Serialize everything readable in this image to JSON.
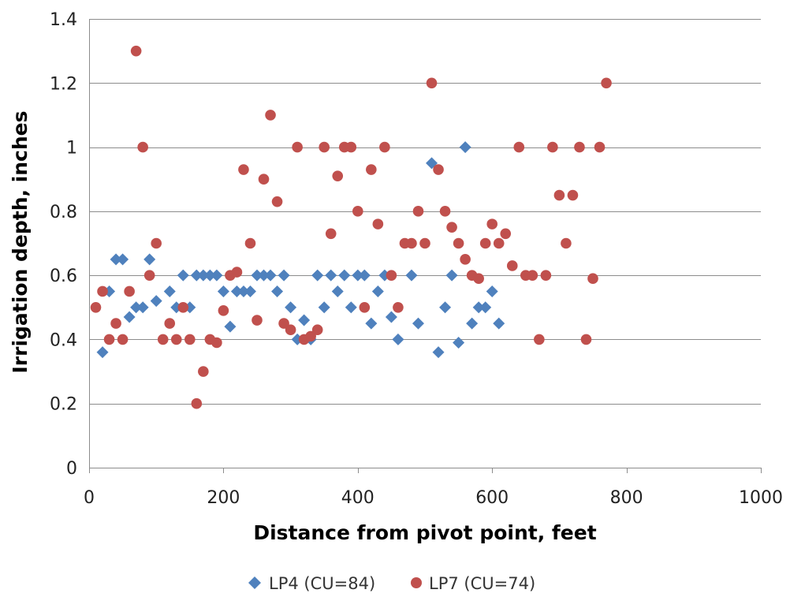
{
  "chart_data": {
    "type": "scatter",
    "title": "",
    "xlabel": "Distance from pivot point, feet",
    "ylabel": "Irrigation depth, inches",
    "xlim": [
      0,
      1000
    ],
    "ylim": [
      0,
      1.4
    ],
    "xticks": [
      0,
      200,
      400,
      600,
      800,
      1000
    ],
    "yticks": [
      0,
      0.2,
      0.4,
      0.6,
      0.8,
      1,
      1.2,
      1.4
    ],
    "xtick_labels": [
      "0",
      "200",
      "400",
      "600",
      "800",
      "1000"
    ],
    "ytick_labels": [
      "0",
      "0.2",
      "0.4",
      "0.6",
      "0.8",
      "1",
      "1.2",
      "1.4"
    ],
    "grid": "horizontal",
    "legend_position": "bottom",
    "series": [
      {
        "name": "LP4 (CU=84)",
        "marker": "diamond",
        "color": "#4f81bd",
        "points": [
          [
            20,
            0.36
          ],
          [
            30,
            0.55
          ],
          [
            40,
            0.65
          ],
          [
            50,
            0.65
          ],
          [
            60,
            0.47
          ],
          [
            70,
            0.5
          ],
          [
            80,
            0.5
          ],
          [
            90,
            0.65
          ],
          [
            100,
            0.52
          ],
          [
            120,
            0.55
          ],
          [
            130,
            0.5
          ],
          [
            140,
            0.6
          ],
          [
            150,
            0.5
          ],
          [
            160,
            0.6
          ],
          [
            170,
            0.6
          ],
          [
            180,
            0.6
          ],
          [
            190,
            0.6
          ],
          [
            200,
            0.55
          ],
          [
            210,
            0.44
          ],
          [
            220,
            0.55
          ],
          [
            230,
            0.55
          ],
          [
            240,
            0.55
          ],
          [
            250,
            0.6
          ],
          [
            260,
            0.6
          ],
          [
            270,
            0.6
          ],
          [
            280,
            0.55
          ],
          [
            290,
            0.6
          ],
          [
            300,
            0.5
          ],
          [
            310,
            0.4
          ],
          [
            320,
            0.46
          ],
          [
            330,
            0.4
          ],
          [
            340,
            0.6
          ],
          [
            350,
            0.5
          ],
          [
            360,
            0.6
          ],
          [
            370,
            0.55
          ],
          [
            380,
            0.6
          ],
          [
            390,
            0.5
          ],
          [
            400,
            0.6
          ],
          [
            410,
            0.6
          ],
          [
            420,
            0.45
          ],
          [
            430,
            0.55
          ],
          [
            440,
            0.6
          ],
          [
            450,
            0.47
          ],
          [
            460,
            0.4
          ],
          [
            480,
            0.6
          ],
          [
            490,
            0.45
          ],
          [
            510,
            0.95
          ],
          [
            520,
            0.36
          ],
          [
            530,
            0.5
          ],
          [
            540,
            0.6
          ],
          [
            550,
            0.39
          ],
          [
            560,
            1.0
          ],
          [
            570,
            0.45
          ],
          [
            580,
            0.5
          ],
          [
            590,
            0.5
          ],
          [
            600,
            0.55
          ],
          [
            610,
            0.45
          ]
        ]
      },
      {
        "name": "LP7 (CU=74)",
        "marker": "circle",
        "color": "#c0504d",
        "points": [
          [
            10,
            0.5
          ],
          [
            20,
            0.55
          ],
          [
            30,
            0.4
          ],
          [
            40,
            0.45
          ],
          [
            50,
            0.4
          ],
          [
            60,
            0.55
          ],
          [
            70,
            1.3
          ],
          [
            80,
            1.0
          ],
          [
            90,
            0.6
          ],
          [
            100,
            0.7
          ],
          [
            110,
            0.4
          ],
          [
            120,
            0.45
          ],
          [
            130,
            0.4
          ],
          [
            140,
            0.5
          ],
          [
            150,
            0.4
          ],
          [
            160,
            0.2
          ],
          [
            170,
            0.3
          ],
          [
            180,
            0.4
          ],
          [
            190,
            0.39
          ],
          [
            200,
            0.49
          ],
          [
            210,
            0.6
          ],
          [
            220,
            0.61
          ],
          [
            230,
            0.93
          ],
          [
            240,
            0.7
          ],
          [
            250,
            0.46
          ],
          [
            260,
            0.9
          ],
          [
            270,
            1.1
          ],
          [
            280,
            0.83
          ],
          [
            290,
            0.45
          ],
          [
            300,
            0.43
          ],
          [
            310,
            1.0
          ],
          [
            320,
            0.4
          ],
          [
            330,
            0.41
          ],
          [
            340,
            0.43
          ],
          [
            350,
            1.0
          ],
          [
            360,
            0.73
          ],
          [
            370,
            0.91
          ],
          [
            380,
            1.0
          ],
          [
            390,
            1.0
          ],
          [
            400,
            0.8
          ],
          [
            410,
            0.5
          ],
          [
            420,
            0.93
          ],
          [
            430,
            0.76
          ],
          [
            440,
            1.0
          ],
          [
            450,
            0.6
          ],
          [
            460,
            0.5
          ],
          [
            470,
            0.7
          ],
          [
            480,
            0.7
          ],
          [
            490,
            0.8
          ],
          [
            500,
            0.7
          ],
          [
            510,
            1.2
          ],
          [
            520,
            0.93
          ],
          [
            530,
            0.8
          ],
          [
            540,
            0.75
          ],
          [
            550,
            0.7
          ],
          [
            560,
            0.65
          ],
          [
            570,
            0.6
          ],
          [
            580,
            0.59
          ],
          [
            590,
            0.7
          ],
          [
            600,
            0.76
          ],
          [
            610,
            0.7
          ],
          [
            620,
            0.73
          ],
          [
            630,
            0.63
          ],
          [
            640,
            1.0
          ],
          [
            650,
            0.6
          ],
          [
            660,
            0.6
          ],
          [
            670,
            0.4
          ],
          [
            680,
            0.6
          ],
          [
            690,
            1.0
          ],
          [
            700,
            0.85
          ],
          [
            710,
            0.7
          ],
          [
            720,
            0.85
          ],
          [
            730,
            1.0
          ],
          [
            740,
            0.4
          ],
          [
            750,
            0.59
          ],
          [
            760,
            1.0
          ],
          [
            770,
            1.2
          ]
        ]
      }
    ]
  }
}
